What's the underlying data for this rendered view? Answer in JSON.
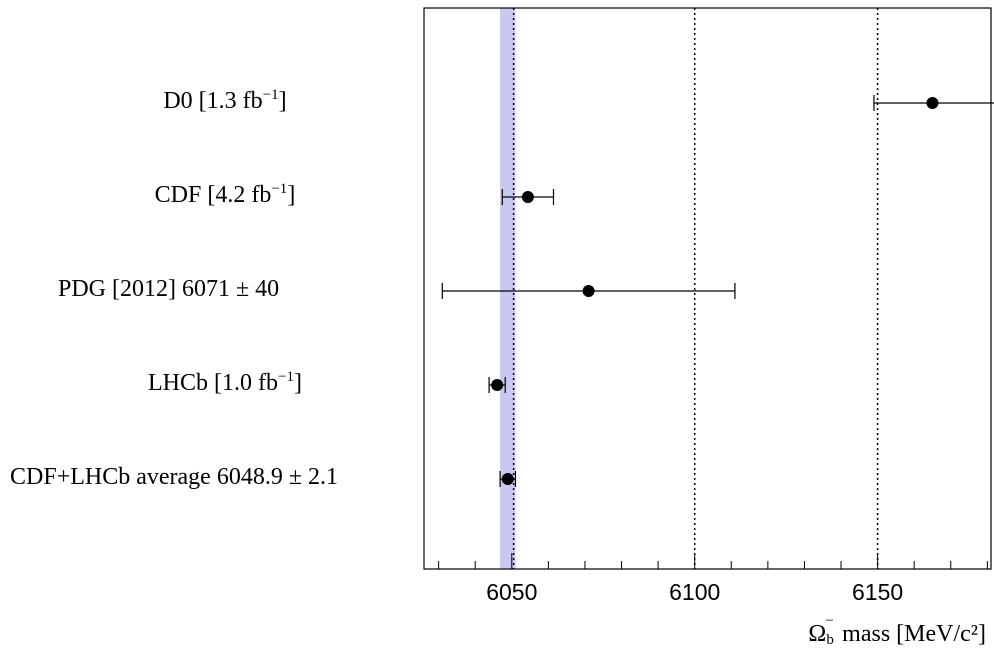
{
  "chart_data": {
    "type": "scatter",
    "title": "",
    "xlabel": "mass [MeV/c²]",
    "xlabel_symbol": "Ω",
    "xlabel_symbol_sup": "−",
    "xlabel_symbol_sub": "b",
    "xlim": [
      6026,
      6181
    ],
    "xticks": [
      6050,
      6100,
      6150
    ],
    "reference_lines": [
      6050.5,
      6100,
      6150
    ],
    "band": {
      "center": 6048.9,
      "error": 2.1,
      "color": "#c8c8f0"
    },
    "entries": [
      {
        "label": "D0 [1.3 fb",
        "sup": "−1",
        "suffix": "]",
        "value": 6165,
        "err_low": 16,
        "err_high": 17
      },
      {
        "label": "CDF [4.2 fb",
        "sup": "−1",
        "suffix": "]",
        "value": 6054.4,
        "err_low": 7,
        "err_high": 7
      },
      {
        "label": "PDG [2012] 6071 ±  40",
        "sup": "",
        "suffix": "",
        "value": 6071,
        "err_low": 40,
        "err_high": 40
      },
      {
        "label": "LHCb [1.0 fb",
        "sup": "−1",
        "suffix": "]",
        "value": 6046,
        "err_low": 2.2,
        "err_high": 2.2
      },
      {
        "label": "CDF+LHCb average 6048.9 ± 2.1",
        "sup": "",
        "suffix": "",
        "value": 6048.9,
        "err_low": 2.1,
        "err_high": 2.1
      }
    ]
  }
}
